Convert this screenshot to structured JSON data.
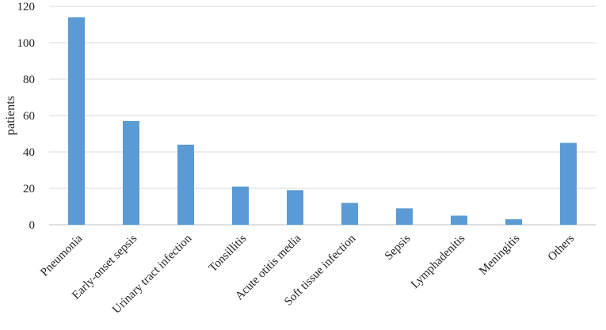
{
  "chart_data": {
    "type": "bar",
    "categories": [
      "Pneumonia",
      "Early-onset sepsis",
      "Urinary tract infection",
      "Tonsillitis",
      "Acute otitis media",
      "Soft tissue infection",
      "Sepsis",
      "Lymphadenitis",
      "Meningitis",
      "Others"
    ],
    "values": [
      114,
      57,
      44,
      21,
      19,
      12,
      9,
      5,
      3,
      45
    ],
    "ylabel": "patients",
    "ylim": [
      0,
      120
    ],
    "yticks": [
      "0",
      "20",
      "40",
      "60",
      "80",
      "100",
      "120"
    ],
    "grid": true,
    "bar_color": "#5b9bd5"
  }
}
